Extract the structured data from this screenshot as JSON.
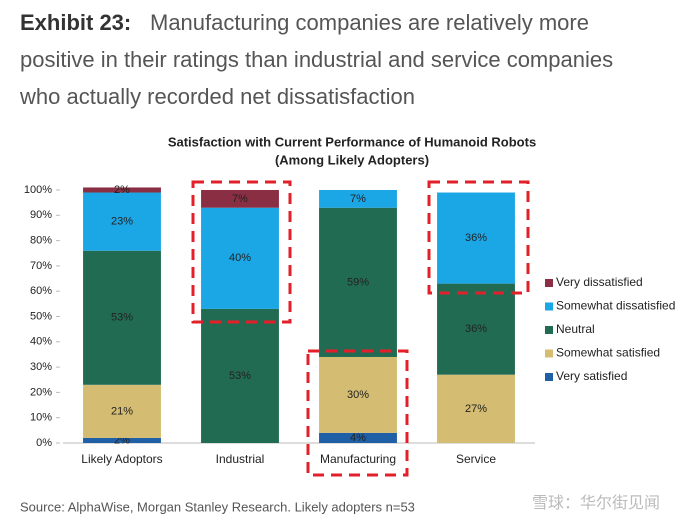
{
  "header": {
    "label": "Exhibit 23:",
    "lines": [
      "Manufacturing companies are relatively more",
      "positive in their ratings than industrial and service companies",
      "who actually recorded net dissatisfaction"
    ]
  },
  "chart_data": {
    "type": "stacked_bar",
    "title": [
      "Satisfaction with Current Performance of Humanoid Robots",
      "(Among Likely Adopters)"
    ],
    "categories": [
      "Likely Adoptors",
      "Industrial",
      "Manufacturing",
      "Service"
    ],
    "series": [
      {
        "name": "Very satisfied",
        "color": "#1f5fa6",
        "values": [
          2,
          0,
          4,
          0
        ],
        "value_labels": [
          "2%",
          null,
          "4%",
          null
        ]
      },
      {
        "name": "Somewhat satisfied",
        "color": "#d4bc72",
        "values": [
          21,
          0,
          30,
          27
        ],
        "value_labels": [
          "21%",
          null,
          "30%",
          "27%"
        ]
      },
      {
        "name": "Neutral",
        "color": "#216b53",
        "values": [
          53,
          53,
          59,
          36
        ],
        "value_labels": [
          "53%",
          "53%",
          "59%",
          "36%"
        ]
      },
      {
        "name": "Somewhat dissatisfied",
        "color": "#1ba6e6",
        "values": [
          23,
          40,
          7,
          36
        ],
        "value_labels": [
          "23%",
          "40%",
          "7%",
          "36%"
        ]
      },
      {
        "name": "Very dissatisfied",
        "color": "#8a2f43",
        "values": [
          2,
          7,
          0,
          0
        ],
        "value_labels": [
          "2%",
          "7%",
          null,
          null
        ]
      }
    ],
    "ylim": [
      0,
      100
    ],
    "yticks": [
      {
        "value": 0,
        "label": "0%"
      },
      {
        "value": 10,
        "label": "10%"
      },
      {
        "value": 20,
        "label": "20%"
      },
      {
        "value": 30,
        "label": "30%"
      },
      {
        "value": 40,
        "label": "40%"
      },
      {
        "value": 50,
        "label": "50%"
      },
      {
        "value": 60,
        "label": "60%"
      },
      {
        "value": 70,
        "label": "70%"
      },
      {
        "value": 80,
        "label": "80%"
      },
      {
        "value": 90,
        "label": "90%"
      },
      {
        "value": 100,
        "label": "100%"
      }
    ],
    "legend": "right"
  },
  "source": "Source: AlphaWise, Morgan Stanley Research. Likely adopters n=53",
  "watermark": "雪球：华尔街见闻"
}
